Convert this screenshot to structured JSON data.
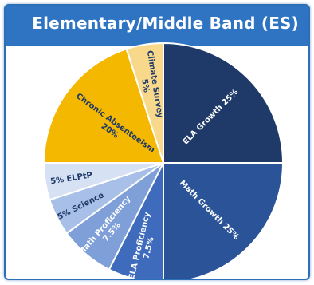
{
  "header": {
    "title": "Elementary/Middle Band (ES)"
  },
  "colors": {
    "header_bg": "#2e74c2",
    "title_text": "#ffffff"
  },
  "chart_data": {
    "type": "pie",
    "title": "Elementary/Middle Band (ES)",
    "start_angle_deg": 0,
    "direction": "clockwise",
    "slices": [
      {
        "label": "ELA Growth 25%",
        "lines": [
          "ELA Growth 25%"
        ],
        "value": 25,
        "color": "#1f3a68",
        "text_color": "#ffffff"
      },
      {
        "label": "Math Growth 25%",
        "lines": [
          "Math Growth 25%"
        ],
        "value": 25,
        "color": "#2a5398",
        "text_color": "#ffffff"
      },
      {
        "label": "ELA Proficiency 7.5%",
        "lines": [
          "ELA Proficiency",
          "7.5%"
        ],
        "value": 7.5,
        "color": "#3f6bbd",
        "text_color": "#ffffff"
      },
      {
        "label": "Math Proficiency 7.5%",
        "lines": [
          "Math Proficiency",
          "7.5%"
        ],
        "value": 7.5,
        "color": "#7e9fd8",
        "text_color": "#ffffff"
      },
      {
        "label": "5% Science",
        "lines": [
          "5% Science"
        ],
        "value": 5,
        "color": "#a8bfe7",
        "text_color": "#1f3a68"
      },
      {
        "label": "5% ELPtP",
        "lines": [
          "5% ELPtP"
        ],
        "value": 5,
        "color": "#d6e1f4",
        "text_color": "#1f3a68"
      },
      {
        "label": "Chronic Absenteeism 20%",
        "lines": [
          "Chronic Absenteeism",
          "20%"
        ],
        "value": 20,
        "color": "#f5b800",
        "text_color": "#1f3a68"
      },
      {
        "label": "Climate Survey 5%",
        "lines": [
          "Climate Survey",
          "5%"
        ],
        "value": 5,
        "color": "#f8d98c",
        "text_color": "#1f3a68"
      }
    ]
  }
}
